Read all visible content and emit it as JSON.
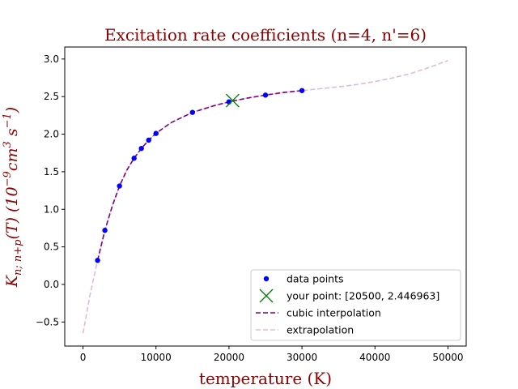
{
  "chart_data": {
    "type": "line",
    "title": "Excitation rate coefficients (n=4, n'=6)",
    "xlabel": "temperature (K)",
    "ylabel": {
      "main": "K",
      "sub": "n; n+p",
      "arg": "(T) (10",
      "exp1": "−9",
      "unit1": "cm",
      "exp2": "3",
      "unit2": " s",
      "exp3": "−1",
      "close": ")"
    },
    "xlim": [
      -2500,
      52500
    ],
    "ylim": [
      -0.82,
      3.16
    ],
    "xticks": [
      0,
      10000,
      20000,
      30000,
      40000,
      50000
    ],
    "xtick_labels": [
      "0",
      "10000",
      "20000",
      "30000",
      "40000",
      "50000"
    ],
    "yticks": [
      -0.5,
      0.0,
      0.5,
      1.0,
      1.5,
      2.0,
      2.5,
      3.0
    ],
    "ytick_labels": [
      "−0.5",
      "0.0",
      "0.5",
      "1.0",
      "1.5",
      "2.0",
      "2.5",
      "3.0"
    ],
    "grid": false,
    "legend_position": "lower-right",
    "series": [
      {
        "name": "data points",
        "kind": "markers",
        "color": "#0000ff",
        "x": [
          2000,
          3000,
          5000,
          7000,
          8000,
          9000,
          10000,
          15000,
          20000,
          25000,
          30000
        ],
        "y": [
          0.32,
          0.72,
          1.31,
          1.68,
          1.81,
          1.92,
          2.01,
          2.29,
          2.43,
          2.52,
          2.58
        ]
      },
      {
        "name": "your point: [20500, 2.446963]",
        "kind": "cross",
        "color": "#008000",
        "x": [
          20500
        ],
        "y": [
          2.446963
        ]
      },
      {
        "name": "cubic interpolation",
        "kind": "dashed-line",
        "color": "#800080",
        "x": [
          2000,
          3000,
          4000,
          5000,
          6000,
          7000,
          8000,
          9000,
          10000,
          12000,
          15000,
          18000,
          20000,
          22500,
          25000,
          27500,
          30000
        ],
        "y": [
          0.32,
          0.72,
          1.04,
          1.31,
          1.52,
          1.68,
          1.81,
          1.92,
          2.01,
          2.15,
          2.29,
          2.38,
          2.43,
          2.48,
          2.52,
          2.555,
          2.58
        ]
      },
      {
        "name": "extrapolation",
        "kind": "dashed-line",
        "color": "#d8bfd8",
        "x": [
          0,
          1000,
          2000,
          3000,
          4000,
          5000,
          6000,
          7000,
          8000,
          9000,
          10000,
          12000,
          15000,
          18000,
          20000,
          22500,
          25000,
          27500,
          30000,
          32500,
          35000,
          37500,
          40000,
          42500,
          45000,
          47500,
          50000
        ],
        "y": [
          -0.65,
          -0.12,
          0.32,
          0.72,
          1.04,
          1.31,
          1.52,
          1.68,
          1.81,
          1.92,
          2.01,
          2.15,
          2.29,
          2.38,
          2.43,
          2.48,
          2.52,
          2.555,
          2.58,
          2.605,
          2.63,
          2.66,
          2.7,
          2.75,
          2.81,
          2.89,
          2.98
        ]
      }
    ]
  }
}
